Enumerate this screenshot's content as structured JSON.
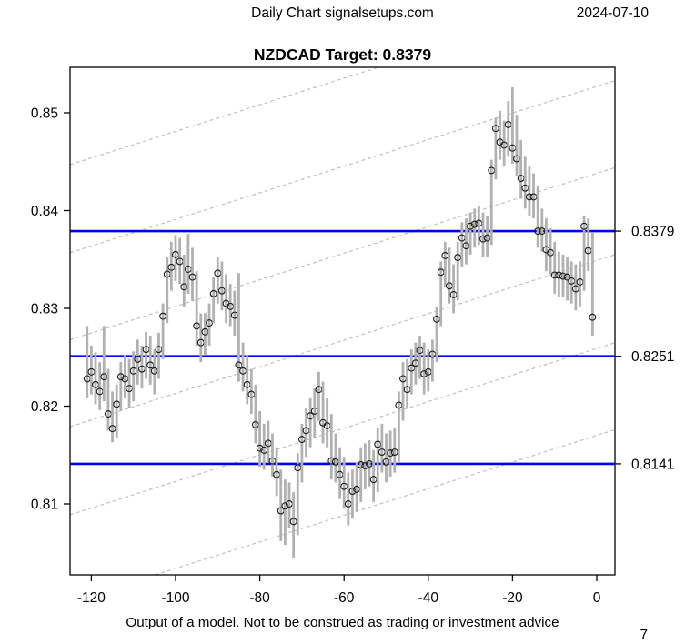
{
  "header": {
    "left_title": "Daily Chart signalsetups.com",
    "date": "2024-07-10"
  },
  "chart_title": "NZDCAD Target: 0.8379",
  "footer": {
    "disclaimer": "Output of a model. Not to be construed as trading or investment advice",
    "page_number": "7"
  },
  "colors": {
    "bar": "#b1b1b1",
    "close_circle": "#1a1a1a",
    "level_line": "#0000ee",
    "trend_line": "#c0c0c0",
    "axis": "#000000",
    "background": "#ffffff"
  },
  "chart_data": {
    "type": "hlc_bars",
    "symbol": "NZDCAD",
    "target": 0.8379,
    "title": "NZDCAD Target: 0.8379",
    "xlabel": "",
    "ylabel": "",
    "x_range": [
      -125.05,
      4.32
    ],
    "y_range": [
      0.8027,
      0.8547
    ],
    "grid": false,
    "x_ticks": [
      {
        "v": -120,
        "label": "-120"
      },
      {
        "v": -100,
        "label": "-100"
      },
      {
        "v": -80,
        "label": "-80"
      },
      {
        "v": -60,
        "label": "-60"
      },
      {
        "v": -40,
        "label": "-40"
      },
      {
        "v": -20,
        "label": "-20"
      },
      {
        "v": 0,
        "label": "0"
      }
    ],
    "y_ticks": [
      {
        "v": 0.85,
        "label": "0.85"
      },
      {
        "v": 0.84,
        "label": "0.84"
      },
      {
        "v": 0.83,
        "label": "0.83"
      },
      {
        "v": 0.82,
        "label": "0.82"
      },
      {
        "v": 0.81,
        "label": "0.81"
      }
    ],
    "level_lines": [
      {
        "price": 0.8379,
        "label": "0.8379"
      },
      {
        "price": 0.8251,
        "label": "0.8251"
      },
      {
        "price": 0.8141,
        "label": "0.8141"
      }
    ],
    "trend_channel": {
      "style": "dashed",
      "slope_per_bar": 0.000136,
      "price_at_bar0": [
        0.8617,
        0.8527,
        0.8438,
        0.8349,
        0.8259,
        0.817
      ]
    },
    "bars": [
      [
        -121,
        0.8282,
        0.8208,
        0.8228
      ],
      [
        -120,
        0.8262,
        0.8212,
        0.8235
      ],
      [
        -119,
        0.8255,
        0.8202,
        0.8222
      ],
      [
        -118,
        0.8245,
        0.8196,
        0.8215
      ],
      [
        -117,
        0.8282,
        0.8205,
        0.823
      ],
      [
        -116,
        0.8238,
        0.8175,
        0.8192
      ],
      [
        -115,
        0.8215,
        0.8163,
        0.8177
      ],
      [
        -114,
        0.8222,
        0.8168,
        0.8202
      ],
      [
        -113,
        0.8245,
        0.8195,
        0.823
      ],
      [
        -112,
        0.8252,
        0.8208,
        0.8228
      ],
      [
        -111,
        0.8248,
        0.8198,
        0.8218
      ],
      [
        -110,
        0.8256,
        0.8205,
        0.8236
      ],
      [
        -109,
        0.8268,
        0.8222,
        0.8248
      ],
      [
        -108,
        0.8262,
        0.8218,
        0.8238
      ],
      [
        -107,
        0.8276,
        0.8228,
        0.8258
      ],
      [
        -106,
        0.8272,
        0.8222,
        0.8242
      ],
      [
        -105,
        0.8258,
        0.8212,
        0.8236
      ],
      [
        -104,
        0.8275,
        0.8228,
        0.8258
      ],
      [
        -103,
        0.8305,
        0.8248,
        0.8292
      ],
      [
        -102,
        0.8352,
        0.8285,
        0.8335
      ],
      [
        -101,
        0.8368,
        0.8318,
        0.8342
      ],
      [
        -100,
        0.8375,
        0.8328,
        0.8355
      ],
      [
        -99,
        0.8372,
        0.8325,
        0.8348
      ],
      [
        -98,
        0.8355,
        0.8302,
        0.8322
      ],
      [
        -97,
        0.8376,
        0.8315,
        0.834
      ],
      [
        -96,
        0.8362,
        0.8308,
        0.8332
      ],
      [
        -95,
        0.8338,
        0.8262,
        0.8282
      ],
      [
        -94,
        0.8295,
        0.8245,
        0.8265
      ],
      [
        -93,
        0.8295,
        0.8252,
        0.8276
      ],
      [
        -92,
        0.8305,
        0.8262,
        0.8285
      ],
      [
        -91,
        0.8332,
        0.8285,
        0.8315
      ],
      [
        -90,
        0.8352,
        0.8305,
        0.8336
      ],
      [
        -89,
        0.8348,
        0.8298,
        0.8318
      ],
      [
        -88,
        0.8335,
        0.8285,
        0.8305
      ],
      [
        -87,
        0.8325,
        0.8282,
        0.8302
      ],
      [
        -86,
        0.8318,
        0.8272,
        0.8293
      ],
      [
        -85,
        0.8336,
        0.8225,
        0.8242
      ],
      [
        -84,
        0.8265,
        0.8215,
        0.8236
      ],
      [
        -83,
        0.8252,
        0.8202,
        0.8222
      ],
      [
        -82,
        0.8238,
        0.8192,
        0.8212
      ],
      [
        -81,
        0.8222,
        0.8162,
        0.8181
      ],
      [
        -80,
        0.8195,
        0.8138,
        0.8157
      ],
      [
        -79,
        0.8182,
        0.8135,
        0.8155
      ],
      [
        -78,
        0.8185,
        0.8142,
        0.8162
      ],
      [
        -77,
        0.8172,
        0.8128,
        0.8144
      ],
      [
        -76,
        0.8158,
        0.8108,
        0.813
      ],
      [
        -75,
        0.8135,
        0.8062,
        0.8093
      ],
      [
        -74,
        0.8125,
        0.8058,
        0.8098
      ],
      [
        -73,
        0.8122,
        0.8075,
        0.81
      ],
      [
        -72,
        0.8112,
        0.8045,
        0.8082
      ],
      [
        -71,
        0.8152,
        0.8068,
        0.8137
      ],
      [
        -70,
        0.8182,
        0.8122,
        0.8166
      ],
      [
        -69,
        0.8198,
        0.8148,
        0.8175
      ],
      [
        -68,
        0.8208,
        0.8158,
        0.819
      ],
      [
        -67,
        0.8218,
        0.8168,
        0.8195
      ],
      [
        -66,
        0.8235,
        0.8185,
        0.8217
      ],
      [
        -65,
        0.8225,
        0.8162,
        0.8183
      ],
      [
        -64,
        0.8208,
        0.8158,
        0.818
      ],
      [
        -63,
        0.8192,
        0.8125,
        0.8144
      ],
      [
        -62,
        0.8172,
        0.8122,
        0.8143
      ],
      [
        -61,
        0.8158,
        0.8105,
        0.813
      ],
      [
        -60,
        0.8148,
        0.8095,
        0.8118
      ],
      [
        -59,
        0.8132,
        0.8078,
        0.81
      ],
      [
        -58,
        0.8135,
        0.8085,
        0.8113
      ],
      [
        -57,
        0.8142,
        0.8092,
        0.8115
      ],
      [
        -56,
        0.8158,
        0.8102,
        0.814
      ],
      [
        -55,
        0.8162,
        0.8115,
        0.8139
      ],
      [
        -54,
        0.8165,
        0.8118,
        0.8141
      ],
      [
        -53,
        0.8155,
        0.8102,
        0.8125
      ],
      [
        -52,
        0.8178,
        0.8112,
        0.8161
      ],
      [
        -51,
        0.8182,
        0.8132,
        0.8153
      ],
      [
        -50,
        0.8172,
        0.8122,
        0.8143
      ],
      [
        -49,
        0.8175,
        0.8128,
        0.8152
      ],
      [
        -48,
        0.8178,
        0.8132,
        0.8153
      ],
      [
        -47,
        0.8215,
        0.8143,
        0.8201
      ],
      [
        -46,
        0.8245,
        0.8185,
        0.8228
      ],
      [
        -45,
        0.8248,
        0.8198,
        0.8217
      ],
      [
        -44,
        0.8258,
        0.8212,
        0.8239
      ],
      [
        -43,
        0.8265,
        0.8222,
        0.8244
      ],
      [
        -42,
        0.8272,
        0.8228,
        0.8257
      ],
      [
        -41,
        0.8265,
        0.8212,
        0.8233
      ],
      [
        -40,
        0.8258,
        0.8215,
        0.8235
      ],
      [
        -39,
        0.8268,
        0.8225,
        0.8253
      ],
      [
        -38,
        0.8302,
        0.8245,
        0.8289
      ],
      [
        -37,
        0.8348,
        0.8282,
        0.8337
      ],
      [
        -36,
        0.8368,
        0.8322,
        0.8354
      ],
      [
        -35,
        0.8362,
        0.8305,
        0.8323
      ],
      [
        -34,
        0.8345,
        0.8295,
        0.8314
      ],
      [
        -33,
        0.8368,
        0.8308,
        0.8352
      ],
      [
        -32,
        0.8388,
        0.8342,
        0.8372
      ],
      [
        -31,
        0.8392,
        0.8345,
        0.8364
      ],
      [
        -30,
        0.8398,
        0.8355,
        0.8384
      ],
      [
        -29,
        0.8402,
        0.8362,
        0.8386
      ],
      [
        -28,
        0.8405,
        0.8365,
        0.8387
      ],
      [
        -27,
        0.8398,
        0.8352,
        0.8371
      ],
      [
        -26,
        0.8395,
        0.8352,
        0.8372
      ],
      [
        -25,
        0.8452,
        0.8365,
        0.8441
      ],
      [
        -24,
        0.8495,
        0.8432,
        0.8484
      ],
      [
        -23,
        0.8502,
        0.8452,
        0.847
      ],
      [
        -22,
        0.8492,
        0.8445,
        0.8467
      ],
      [
        -21,
        0.8512,
        0.8455,
        0.8488
      ],
      [
        -20,
        0.8526,
        0.8448,
        0.8464
      ],
      [
        -19,
        0.8498,
        0.8435,
        0.8453
      ],
      [
        -18,
        0.8472,
        0.8412,
        0.8433
      ],
      [
        -17,
        0.8455,
        0.8402,
        0.8423
      ],
      [
        -16,
        0.8445,
        0.8395,
        0.8414
      ],
      [
        -15,
        0.8438,
        0.8392,
        0.8414
      ],
      [
        -14,
        0.8425,
        0.8362,
        0.8379
      ],
      [
        -13,
        0.8402,
        0.8358,
        0.8379
      ],
      [
        -12,
        0.8392,
        0.8338,
        0.836
      ],
      [
        -11,
        0.8382,
        0.8335,
        0.8357
      ],
      [
        -10,
        0.8368,
        0.8315,
        0.8334
      ],
      [
        -9,
        0.8358,
        0.8312,
        0.8334
      ],
      [
        -8,
        0.8355,
        0.8312,
        0.8333
      ],
      [
        -7,
        0.8352,
        0.8308,
        0.8332
      ],
      [
        -6,
        0.8348,
        0.8305,
        0.8328
      ],
      [
        -5,
        0.8345,
        0.8298,
        0.832
      ],
      [
        -4,
        0.8348,
        0.8302,
        0.8327
      ],
      [
        -3,
        0.8395,
        0.8318,
        0.8384
      ],
      [
        -2,
        0.8392,
        0.8338,
        0.8359
      ],
      [
        -1,
        0.8378,
        0.8272,
        0.8291
      ]
    ]
  }
}
